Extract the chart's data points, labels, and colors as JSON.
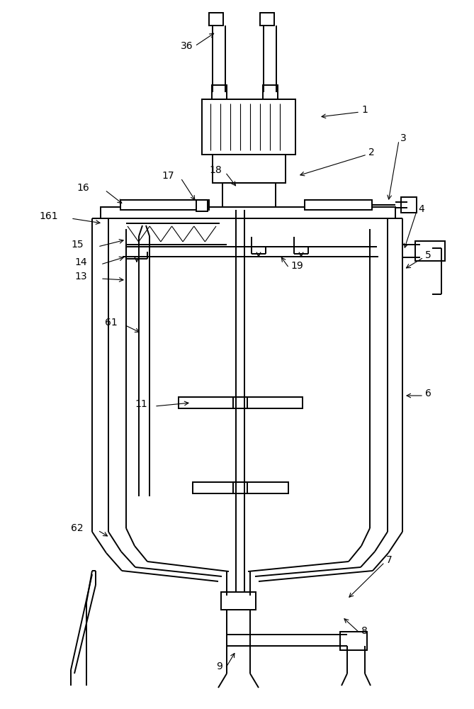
{
  "bg_color": "#ffffff",
  "line_color": "#000000",
  "lw": 1.4,
  "tlw": 0.8,
  "figsize": [
    6.69,
    10.0
  ],
  "dpi": 100
}
